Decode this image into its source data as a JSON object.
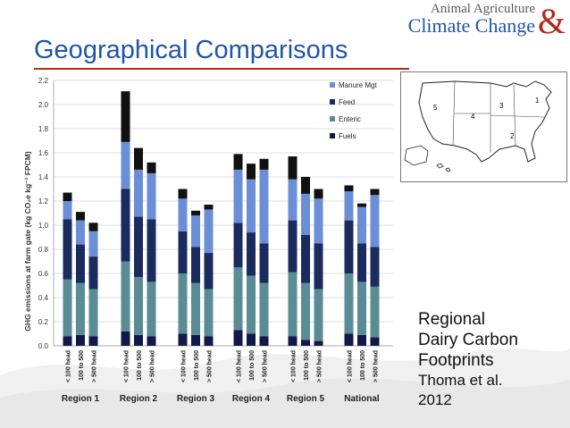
{
  "slide": {
    "title": "Geographical Comparisons",
    "logo_line1": "Animal Agriculture",
    "logo_line2": "Climate Change",
    "logo_amp": "&",
    "caption_line1": "Regional",
    "caption_line2": "Dairy Carbon",
    "caption_line3": "Footprints",
    "citation_line1": "Thoma et al.",
    "citation_line2": "2012",
    "map_labels": [
      "1",
      "2",
      "3",
      "4",
      "5"
    ]
  },
  "colors": {
    "title": "#1f56a8",
    "rule": "#b22b1a",
    "manure": "#6b8fd6",
    "feed": "#1c2b5e",
    "enteric": "#5a8c96",
    "fuels": "#12194a",
    "top_bar": "#111111"
  },
  "chart_data": {
    "type": "bar",
    "stacked": true,
    "ylabel": "GHG emissions at farm gate (kg CO₂e kg⁻¹ FPCM)",
    "ylim": [
      0,
      2.2
    ],
    "yticks": [
      "0.0",
      "0.2",
      "0.4",
      "0.6",
      "0.8",
      "1.0",
      "1.2",
      "1.4",
      "1.6",
      "1.8",
      "2.0",
      "2.2"
    ],
    "groups": [
      "Region 1",
      "Region 2",
      "Region 3",
      "Region 4",
      "Region 5",
      "National"
    ],
    "subcategories": [
      "< 100 head",
      "100 to 500",
      "> 500 head"
    ],
    "legend": [
      "Manure Mgt",
      "Feed",
      "Enteric",
      "Fuels"
    ],
    "legend_position": "top-right",
    "grid": true,
    "series": [
      {
        "name": "Fuels",
        "values": [
          0.08,
          0.09,
          0.08,
          0.12,
          0.09,
          0.08,
          0.1,
          0.09,
          0.08,
          0.13,
          0.1,
          0.08,
          0.08,
          0.05,
          0.04,
          0.1,
          0.09,
          0.07
        ]
      },
      {
        "name": "Enteric",
        "values": [
          0.47,
          0.43,
          0.39,
          0.58,
          0.48,
          0.45,
          0.5,
          0.43,
          0.39,
          0.52,
          0.48,
          0.44,
          0.53,
          0.47,
          0.43,
          0.5,
          0.44,
          0.42
        ]
      },
      {
        "name": "Feed",
        "values": [
          0.5,
          0.32,
          0.27,
          0.6,
          0.5,
          0.52,
          0.35,
          0.3,
          0.3,
          0.37,
          0.36,
          0.33,
          0.43,
          0.4,
          0.38,
          0.44,
          0.32,
          0.33
        ]
      },
      {
        "name": "Manure Mgt",
        "values": [
          0.15,
          0.2,
          0.21,
          0.39,
          0.39,
          0.38,
          0.27,
          0.26,
          0.36,
          0.44,
          0.44,
          0.61,
          0.34,
          0.34,
          0.37,
          0.24,
          0.3,
          0.43
        ]
      },
      {
        "name": "",
        "values": [
          0.07,
          0.07,
          0.07,
          0.42,
          0.18,
          0.09,
          0.08,
          0.04,
          0.04,
          0.13,
          0.13,
          0.09,
          0.19,
          0.14,
          0.08,
          0.05,
          0.03,
          0.05
        ]
      }
    ]
  }
}
